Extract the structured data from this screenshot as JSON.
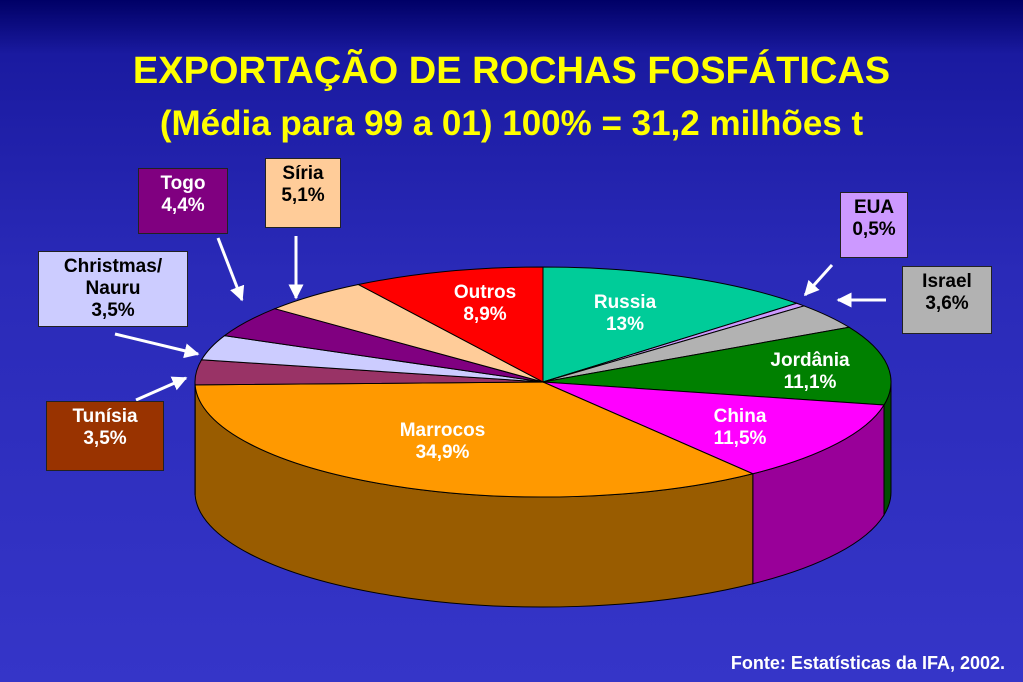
{
  "chart_data": {
    "type": "pie3d",
    "title": "EXPORTAÇÃO DE ROCHAS FOSFÁTICAS",
    "subtitle": "(Média para 99 a 01) 100% = 31,2 milhões t",
    "source": "Fonte: Estatísticas  da IFA, 2002.",
    "categories": [
      "Russia",
      "EUA",
      "Israel",
      "Jordânia",
      "China",
      "Marrocos",
      "Tunísia",
      "Christmas/ Nauru",
      "Togo",
      "Síria",
      "Outros"
    ],
    "values": [
      13,
      0.5,
      3.6,
      11.1,
      11.5,
      34.9,
      3.5,
      3.5,
      4.4,
      5.1,
      8.9
    ],
    "value_labels": [
      "13%",
      "0,5%",
      "3,6%",
      "11,1%",
      "11,5%",
      "34,9%",
      "3,5%",
      "3,5%",
      "4,4%",
      "5,1%",
      "8,9%"
    ],
    "colors": [
      "#00cc99",
      "#cc99ff",
      "#b2b2b2",
      "#008000",
      "#ff00ff",
      "#ff9900",
      "#993366",
      "#ccccff",
      "#800080",
      "#ffcc99",
      "#ff0000"
    ]
  }
}
